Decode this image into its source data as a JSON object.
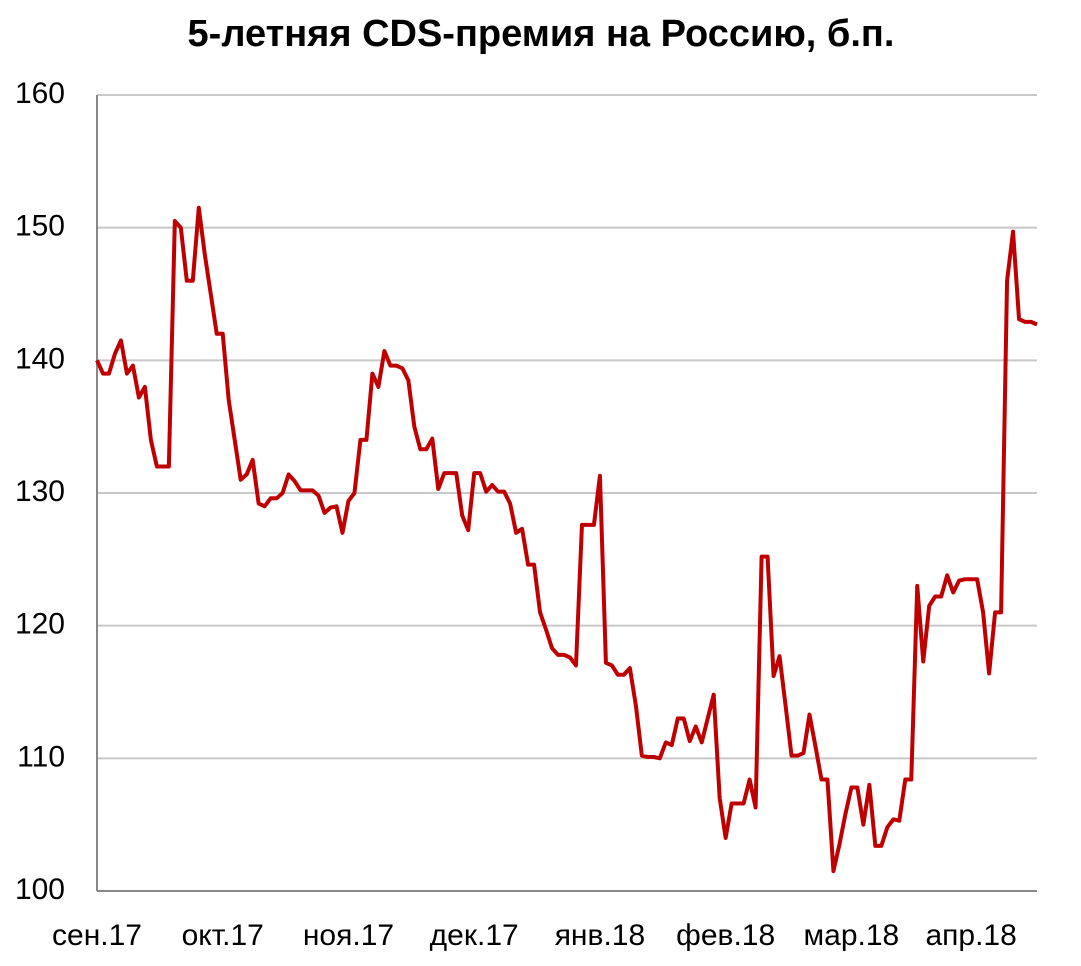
{
  "chart_data": {
    "type": "line",
    "title": "5-летняя CDS-премия на Россию, б.п.",
    "categories": [
      "сен.17",
      null,
      null,
      null,
      null,
      null,
      null,
      null,
      null,
      null,
      null,
      null,
      null,
      null,
      null,
      null,
      null,
      null,
      null,
      null,
      null,
      "окт.17",
      null,
      null,
      null,
      null,
      null,
      null,
      null,
      null,
      null,
      null,
      null,
      null,
      null,
      null,
      null,
      null,
      null,
      null,
      null,
      null,
      "ноя.17",
      null,
      null,
      null,
      null,
      null,
      null,
      null,
      null,
      null,
      null,
      null,
      null,
      null,
      null,
      null,
      null,
      null,
      null,
      null,
      null,
      "дек.17",
      null,
      null,
      null,
      null,
      null,
      null,
      null,
      null,
      null,
      null,
      null,
      null,
      null,
      null,
      null,
      null,
      null,
      null,
      null,
      null,
      "янв.18",
      null,
      null,
      null,
      null,
      null,
      null,
      null,
      null,
      null,
      null,
      null,
      null,
      null,
      null,
      null,
      null,
      null,
      null,
      null,
      null,
      "фев.18",
      null,
      null,
      null,
      null,
      null,
      null,
      null,
      null,
      null,
      null,
      null,
      null,
      null,
      null,
      null,
      null,
      null,
      null,
      null,
      null,
      "мар.18",
      null,
      null,
      null,
      null,
      null,
      null,
      null,
      null,
      null,
      null,
      null,
      null,
      null,
      null,
      null,
      null,
      null,
      null,
      null,
      "апр.18",
      null,
      null,
      null,
      null,
      null,
      null,
      null,
      null,
      null,
      null,
      null
    ],
    "values": [
      140,
      139,
      139,
      140.5,
      141.5,
      139,
      139.6,
      137.2,
      138,
      134,
      132,
      132,
      132,
      150.5,
      150,
      146,
      146,
      151.5,
      148,
      145,
      142,
      142,
      137,
      134,
      131,
      131.4,
      132.5,
      129.2,
      129,
      129.6,
      129.6,
      130,
      131.4,
      130.9,
      130.2,
      130.2,
      130.2,
      129.8,
      128.5,
      128.9,
      129,
      127,
      129.4,
      130,
      134,
      134,
      139,
      138,
      140.7,
      139.6,
      139.6,
      139.4,
      138.5,
      135,
      133.3,
      133.3,
      134.1,
      130.3,
      131.5,
      131.5,
      131.5,
      128.3,
      127.2,
      131.5,
      131.5,
      130.1,
      130.6,
      130.1,
      130.1,
      129.2,
      127,
      127.3,
      124.6,
      124.6,
      121,
      119.7,
      118.3,
      117.8,
      117.8,
      117.6,
      117,
      127.6,
      127.6,
      127.6,
      131.3,
      117.2,
      117,
      116.3,
      116.3,
      116.8,
      114,
      110.2,
      110.1,
      110.1,
      110,
      111.2,
      111,
      113,
      113,
      111.3,
      112.4,
      111.2,
      113,
      114.8,
      107,
      104,
      106.6,
      106.6,
      106.6,
      108.4,
      106.3,
      125.2,
      125.2,
      116.2,
      117.7,
      114,
      110.2,
      110.2,
      110.4,
      113.3,
      110.9,
      108.4,
      108.4,
      101.5,
      103.5,
      105.8,
      107.8,
      107.8,
      105,
      108,
      103.4,
      103.4,
      104.8,
      105.4,
      105.3,
      108.4,
      108.4,
      123,
      117.3,
      121.5,
      122.2,
      122.2,
      123.8,
      122.5,
      123.4,
      123.5,
      123.5,
      123.5,
      121,
      116.4,
      121,
      121,
      146,
      149.7,
      143.1,
      142.9,
      142.9,
      142.7
    ],
    "color": "#c00000",
    "ylim": [
      100,
      160
    ],
    "yticks": [
      100,
      110,
      120,
      130,
      140,
      150,
      160
    ],
    "grid": true
  }
}
